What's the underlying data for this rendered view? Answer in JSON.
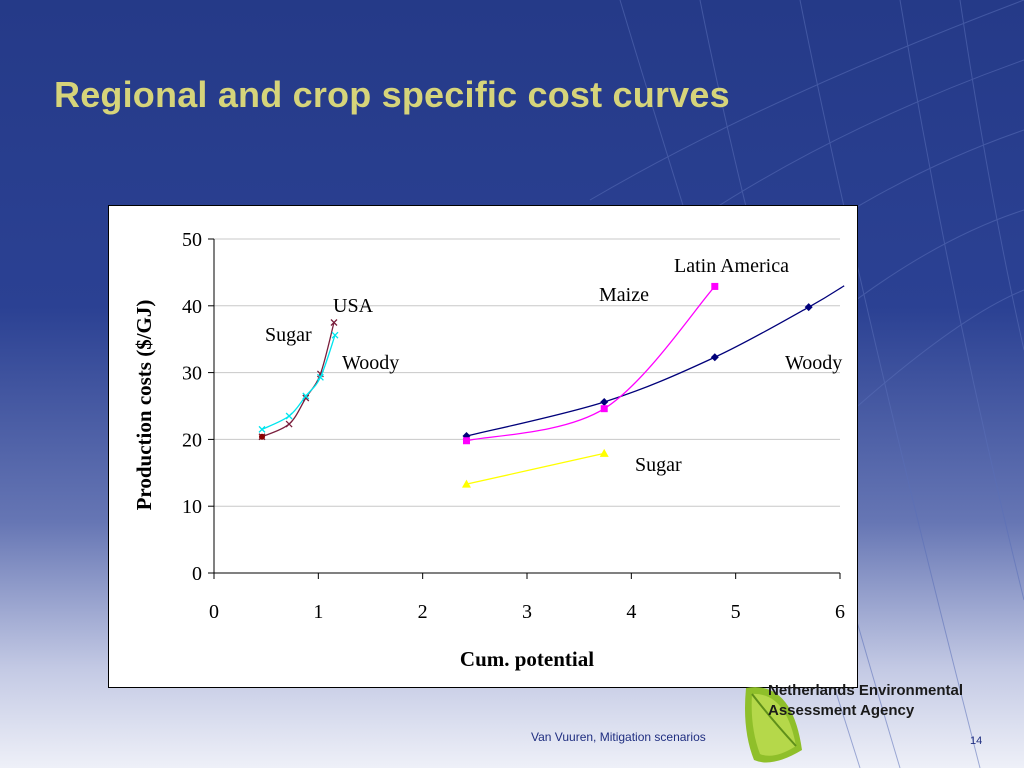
{
  "slide": {
    "title": "Regional and crop specific cost curves",
    "footer": "Van Vuuren, Mitigation scenarios",
    "page_number": "14",
    "agency_line1": "Netherlands Environmental",
    "agency_line2": "Assessment Agency"
  },
  "colors": {
    "background_top": "#253a88",
    "title": "#d6d47a",
    "woody_usa": "#7a1f3d",
    "sugar_usa": "#00e5ee",
    "woody_la": "#00007a",
    "maize_la": "#ff00ff",
    "sugar_la": "#ffff00"
  },
  "chart_data": {
    "type": "line",
    "title": "",
    "xlabel": "Cum. potential",
    "ylabel": "Production costs ($/GJ)",
    "xlim": [
      0,
      6
    ],
    "ylim": [
      0,
      50
    ],
    "xticks": [
      0,
      1,
      2,
      3,
      4,
      5,
      6
    ],
    "yticks": [
      0,
      10,
      20,
      30,
      40,
      50
    ],
    "grid": "horizontal",
    "legend": "none",
    "series": [
      {
        "name": "Woody",
        "region": "USA",
        "color": "#7a1f3d",
        "marker": "x",
        "x": [
          0.46,
          0.72,
          0.88,
          1.02,
          1.15
        ],
        "y": [
          20.4,
          22.3,
          26.2,
          29.8,
          37.5
        ]
      },
      {
        "name": "Sugar",
        "region": "USA",
        "color": "#00e5ee",
        "marker": "x",
        "x": [
          0.46,
          0.72,
          0.88,
          1.02,
          1.16
        ],
        "y": [
          21.5,
          23.5,
          26.5,
          29.3,
          35.6
        ]
      },
      {
        "name": "Woody",
        "region": "Latin America",
        "color": "#00007a",
        "marker": "diamond",
        "x": [
          2.42,
          3.74,
          4.8,
          5.7,
          6.04
        ],
        "y": [
          20.5,
          25.6,
          32.3,
          39.8,
          43.0
        ]
      },
      {
        "name": "Maize",
        "region": "Latin America",
        "color": "#ff00ff",
        "marker": "square",
        "x": [
          2.42,
          3.74,
          4.8
        ],
        "y": [
          19.8,
          24.6,
          42.9
        ]
      },
      {
        "name": "Sugar",
        "region": "Latin America",
        "color": "#ffff00",
        "marker": "triangle",
        "x": [
          2.42,
          3.74
        ],
        "y": [
          13.3,
          17.9
        ]
      }
    ],
    "annotations": [
      {
        "text": "USA"
      },
      {
        "text": "Sugar"
      },
      {
        "text": "Woody"
      },
      {
        "text": "Latin America"
      },
      {
        "text": "Maize"
      },
      {
        "text": "Woody"
      },
      {
        "text": "Sugar"
      }
    ]
  }
}
